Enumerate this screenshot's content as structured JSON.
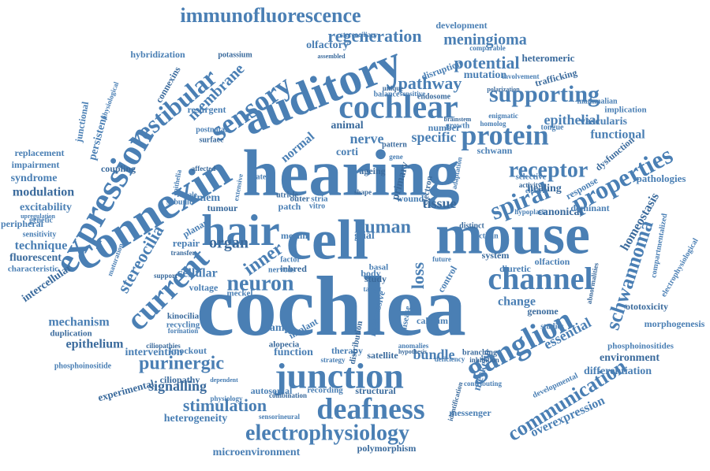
{
  "cloud": {
    "color": "#4a7fb4",
    "color_dark": "#3a6a9c",
    "words": [
      {
        "text": "hearing"
      },
      {
        "text": "cochlea"
      },
      {
        "text": "cell"
      },
      {
        "text": "mouse"
      },
      {
        "text": "auditory"
      },
      {
        "text": "junction"
      },
      {
        "text": "hair"
      },
      {
        "text": "connexin"
      },
      {
        "text": "expression"
      },
      {
        "text": "cochlear"
      },
      {
        "text": "channel"
      },
      {
        "text": "ganglion"
      },
      {
        "text": "deafness"
      },
      {
        "text": "electrophysiology"
      },
      {
        "text": "protein"
      },
      {
        "text": "current"
      },
      {
        "text": "sensory"
      },
      {
        "text": "vestibular"
      },
      {
        "text": "supporting"
      },
      {
        "text": "neuron"
      },
      {
        "text": "spiral"
      },
      {
        "text": "properties"
      },
      {
        "text": "communication"
      },
      {
        "text": "schwannoma"
      },
      {
        "text": "immunofluorescence"
      },
      {
        "text": "regeneration"
      },
      {
        "text": "membrane"
      },
      {
        "text": "receptor"
      },
      {
        "text": "pathway"
      },
      {
        "text": "potential"
      },
      {
        "text": "purinergic"
      },
      {
        "text": "stimulation"
      },
      {
        "text": "human"
      },
      {
        "text": "inner"
      },
      {
        "text": "stereocilia"
      },
      {
        "text": "meningioma"
      },
      {
        "text": "signalling"
      },
      {
        "text": "loss"
      },
      {
        "text": "nerve"
      },
      {
        "text": "organ"
      },
      {
        "text": "epithelial"
      },
      {
        "text": "specific"
      },
      {
        "text": "tissue"
      },
      {
        "text": "functional"
      },
      {
        "text": "essential"
      },
      {
        "text": "homeostasis"
      },
      {
        "text": "bundle"
      },
      {
        "text": "change"
      },
      {
        "text": "epithelium"
      },
      {
        "text": "mechanism"
      },
      {
        "text": "technique"
      },
      {
        "text": "modulation"
      },
      {
        "text": "excitability"
      },
      {
        "text": "syndrome"
      },
      {
        "text": "fluorescent"
      },
      {
        "text": "impairment"
      },
      {
        "text": "replacement"
      },
      {
        "text": "intercellular"
      },
      {
        "text": "characteristic"
      },
      {
        "text": "peripheral"
      },
      {
        "text": "duplication"
      },
      {
        "text": "intervention"
      },
      {
        "text": "phosphoinositide"
      },
      {
        "text": "experimental"
      },
      {
        "text": "heterogeneity"
      },
      {
        "text": "microenvironment"
      },
      {
        "text": "polymorphism"
      },
      {
        "text": "overexpression"
      },
      {
        "text": "differentiation"
      },
      {
        "text": "environment"
      },
      {
        "text": "phosphoinositides"
      },
      {
        "text": "morphogenesis"
      },
      {
        "text": "ototoxicity"
      },
      {
        "text": "electrophysiological"
      },
      {
        "text": "pathologies"
      },
      {
        "text": "canonical"
      },
      {
        "text": "vascularis"
      },
      {
        "text": "implication"
      },
      {
        "text": "heteromeric"
      },
      {
        "text": "development"
      },
      {
        "text": "mutation"
      },
      {
        "text": "trafficking"
      },
      {
        "text": "hybridization"
      },
      {
        "text": "olfactory"
      },
      {
        "text": "connexins"
      },
      {
        "text": "persistent"
      },
      {
        "text": "junctional"
      },
      {
        "text": "potassium"
      },
      {
        "text": "genetic"
      },
      {
        "text": "sensitivity"
      },
      {
        "text": "support"
      },
      {
        "text": "cellular"
      },
      {
        "text": "tmem"
      },
      {
        "text": "tumour"
      },
      {
        "text": "related"
      },
      {
        "text": "normal"
      },
      {
        "text": "animal"
      },
      {
        "text": "resurgent"
      },
      {
        "text": "corti"
      },
      {
        "text": "healing"
      },
      {
        "text": "response"
      },
      {
        "text": "dominant"
      },
      {
        "text": "dysfunction"
      },
      {
        "text": "wound"
      },
      {
        "text": "glial"
      },
      {
        "text": "primary"
      },
      {
        "text": "diuretic"
      },
      {
        "text": "olfaction"
      },
      {
        "text": "system"
      },
      {
        "text": "control"
      },
      {
        "text": "calcium"
      },
      {
        "text": "genome"
      },
      {
        "text": "basal"
      },
      {
        "text": "body"
      },
      {
        "text": "study"
      },
      {
        "text": "clamp"
      },
      {
        "text": "implant"
      },
      {
        "text": "kinocilia"
      },
      {
        "text": "recycling"
      },
      {
        "text": "knockout"
      },
      {
        "text": "alopecia"
      },
      {
        "text": "function"
      },
      {
        "text": "therapy"
      },
      {
        "text": "satellite"
      },
      {
        "text": "progressive"
      },
      {
        "text": "meckelin"
      },
      {
        "text": "ciliopathy"
      },
      {
        "text": "autosomal"
      },
      {
        "text": "recording"
      },
      {
        "text": "structural"
      },
      {
        "text": "messenger"
      },
      {
        "text": "number"
      },
      {
        "text": "ageing"
      },
      {
        "text": "voltage"
      },
      {
        "text": "meckel"
      },
      {
        "text": "inbred"
      },
      {
        "text": "repair"
      },
      {
        "text": "subunit"
      },
      {
        "text": "coupling"
      },
      {
        "text": "planar"
      },
      {
        "text": "patch"
      },
      {
        "text": "outer"
      },
      {
        "text": "stria"
      },
      {
        "text": "mammalian"
      },
      {
        "text": "pattern"
      },
      {
        "text": "schwann"
      },
      {
        "text": "growth"
      },
      {
        "text": "distinct"
      },
      {
        "text": "actinin"
      },
      {
        "text": "selective"
      },
      {
        "text": "activity"
      },
      {
        "text": "electric"
      },
      {
        "text": "tongue"
      },
      {
        "text": "endosome"
      },
      {
        "text": "balance"
      },
      {
        "text": "sensitive"
      },
      {
        "text": "unique"
      },
      {
        "text": "disruption"
      },
      {
        "text": "comparable"
      },
      {
        "text": "polarization"
      },
      {
        "text": "involvement"
      },
      {
        "text": "stereociliary"
      },
      {
        "text": "assembled"
      },
      {
        "text": "physiological"
      },
      {
        "text": "postnatal"
      },
      {
        "text": "surface"
      },
      {
        "text": "female"
      },
      {
        "text": "epithelia"
      },
      {
        "text": "affected"
      },
      {
        "text": "factor"
      },
      {
        "text": "nervous"
      },
      {
        "text": "transfer"
      },
      {
        "text": "formation"
      },
      {
        "text": "physiology"
      },
      {
        "text": "combination"
      },
      {
        "text": "sensorineural"
      },
      {
        "text": "extensive"
      },
      {
        "text": "electron"
      },
      {
        "text": "adaptation"
      },
      {
        "text": "homolog"
      },
      {
        "text": "brainstem"
      },
      {
        "text": "enigmatic"
      },
      {
        "text": "studies"
      },
      {
        "text": "identification"
      },
      {
        "text": "target"
      },
      {
        "text": "future"
      },
      {
        "text": "distribution"
      },
      {
        "text": "disease"
      },
      {
        "text": "gene"
      },
      {
        "text": "shape"
      },
      {
        "text": "strategy"
      },
      {
        "text": "dependent"
      },
      {
        "text": "ciliopathies"
      },
      {
        "text": "upregulation"
      },
      {
        "text": "maturation"
      },
      {
        "text": "abnormalities"
      },
      {
        "text": "compartmentalized"
      },
      {
        "text": "hypoplasia"
      },
      {
        "text": "branching"
      },
      {
        "text": "contributing"
      },
      {
        "text": "deficiency"
      },
      {
        "text": "inhibition"
      },
      {
        "text": "developmental"
      },
      {
        "text": "anomalies"
      },
      {
        "text": "hypothesis"
      },
      {
        "text": "merlin"
      },
      {
        "text": "vitro"
      },
      {
        "text": "utricle"
      }
    ]
  }
}
